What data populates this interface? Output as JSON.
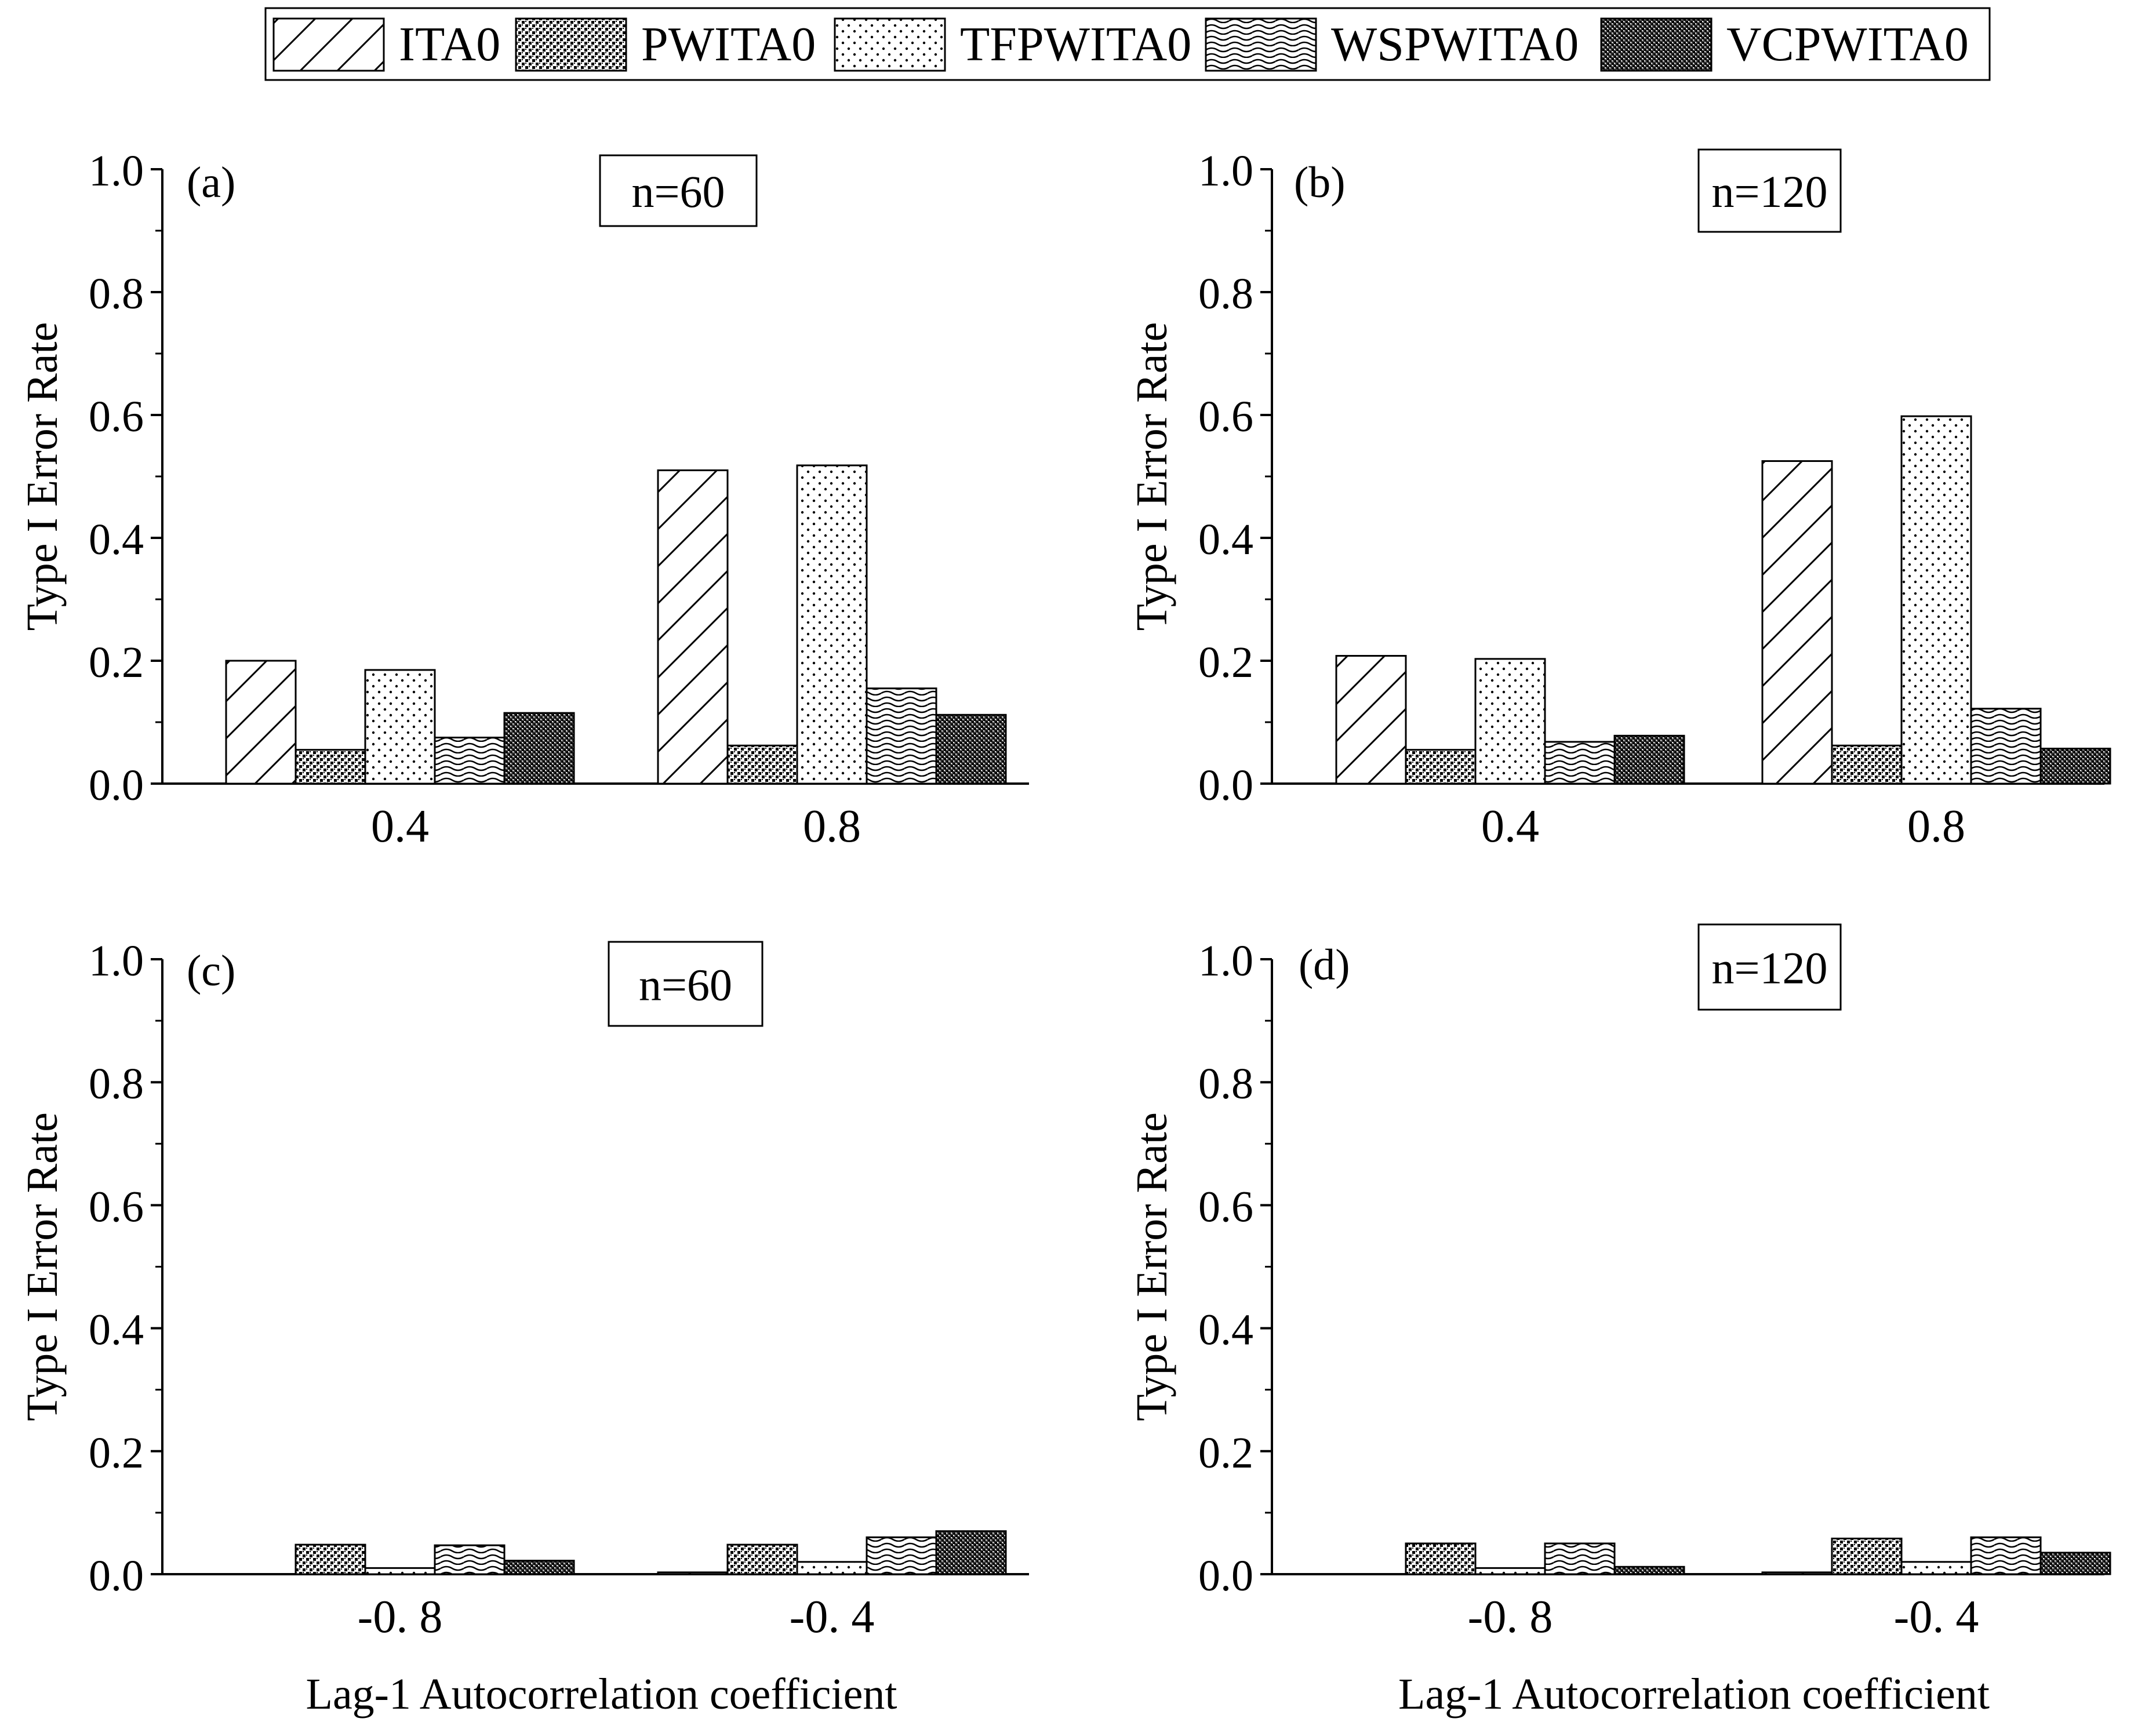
{
  "legend": {
    "entries": [
      "ITA0",
      "PWITA0",
      "TFPWITA0",
      "WSPWITA0",
      "VCPWITA0"
    ],
    "patterns": [
      "diag",
      "checker",
      "dots",
      "waves",
      "dense"
    ]
  },
  "chart_data": [
    {
      "type": "bar",
      "panel": "(a)",
      "sample_label": "n=60",
      "categories": [
        "0.4",
        "0.8"
      ],
      "series": [
        {
          "name": "ITA0",
          "values": [
            0.2,
            0.51
          ]
        },
        {
          "name": "PWITA0",
          "values": [
            0.055,
            0.062
          ]
        },
        {
          "name": "TFPWITA0",
          "values": [
            0.185,
            0.518
          ]
        },
        {
          "name": "WSPWITA0",
          "values": [
            0.075,
            0.155
          ]
        },
        {
          "name": "VCPWITA0",
          "values": [
            0.115,
            0.112
          ]
        }
      ],
      "ylabel": "Type  I  Error  Rate",
      "xlabel": "",
      "ylim": [
        0,
        1.0
      ],
      "yticks": [
        "0.0",
        "0.2",
        "0.4",
        "0.6",
        "0.8",
        "1.0"
      ]
    },
    {
      "type": "bar",
      "panel": "(b)",
      "sample_label": "n=120",
      "categories": [
        "0.4",
        "0.8"
      ],
      "series": [
        {
          "name": "ITA0",
          "values": [
            0.208,
            0.525
          ]
        },
        {
          "name": "PWITA0",
          "values": [
            0.055,
            0.062
          ]
        },
        {
          "name": "TFPWITA0",
          "values": [
            0.203,
            0.598
          ]
        },
        {
          "name": "WSPWITA0",
          "values": [
            0.068,
            0.122
          ]
        },
        {
          "name": "VCPWITA0",
          "values": [
            0.078,
            0.057
          ]
        }
      ],
      "ylabel": "Type  I  Error  Rate",
      "xlabel": "",
      "ylim": [
        0,
        1.0
      ],
      "yticks": [
        "0.0",
        "0.2",
        "0.4",
        "0.6",
        "0.8",
        "1.0"
      ]
    },
    {
      "type": "bar",
      "panel": "(c)",
      "sample_label": "n=60",
      "categories": [
        "-0. 8",
        "-0. 4"
      ],
      "series": [
        {
          "name": "ITA0",
          "values": [
            0.0,
            0.003
          ]
        },
        {
          "name": "PWITA0",
          "values": [
            0.048,
            0.048
          ]
        },
        {
          "name": "TFPWITA0",
          "values": [
            0.01,
            0.02
          ]
        },
        {
          "name": "WSPWITA0",
          "values": [
            0.047,
            0.06
          ]
        },
        {
          "name": "VCPWITA0",
          "values": [
            0.022,
            0.07
          ]
        }
      ],
      "ylabel": "Type  I  Error  Rate",
      "xlabel": "Lag-1 Autocorrelation coefficient",
      "ylim": [
        0,
        1.0
      ],
      "yticks": [
        "0.0",
        "0.2",
        "0.4",
        "0.6",
        "0.8",
        "1.0"
      ]
    },
    {
      "type": "bar",
      "panel": "(d)",
      "sample_label": "n=120",
      "categories": [
        "-0. 8",
        "-0. 4"
      ],
      "series": [
        {
          "name": "ITA0",
          "values": [
            0.0,
            0.003
          ]
        },
        {
          "name": "PWITA0",
          "values": [
            0.05,
            0.058
          ]
        },
        {
          "name": "TFPWITA0",
          "values": [
            0.01,
            0.02
          ]
        },
        {
          "name": "WSPWITA0",
          "values": [
            0.05,
            0.06
          ]
        },
        {
          "name": "VCPWITA0",
          "values": [
            0.012,
            0.035
          ]
        }
      ],
      "ylabel": "Type  I  Error  Rate",
      "xlabel": "Lag-1 Autocorrelation coefficient",
      "ylim": [
        0,
        1.0
      ],
      "yticks": [
        "0.0",
        "0.2",
        "0.4",
        "0.6",
        "0.8",
        "1.0"
      ]
    }
  ]
}
